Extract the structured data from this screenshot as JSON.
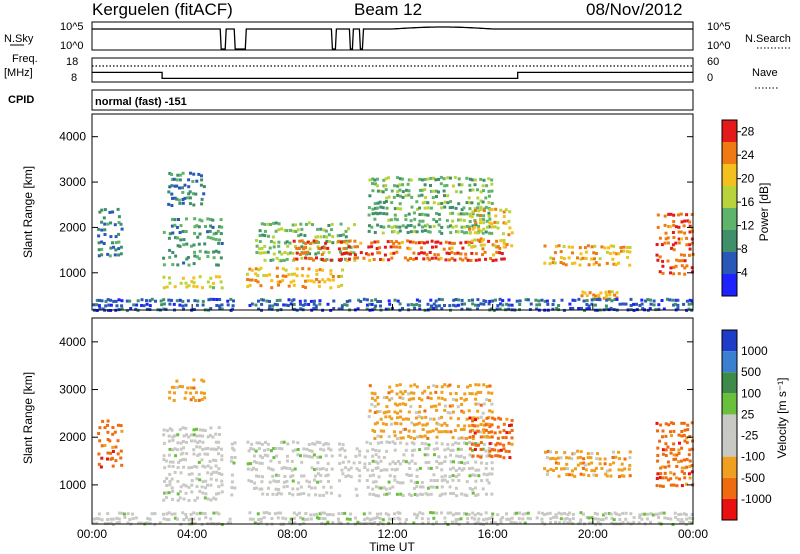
{
  "header": {
    "station": "Kerguelen (fitACF)",
    "beam": "Beam 12",
    "date": "08/Nov/2012"
  },
  "top_strips": {
    "left_labels": {
      "nsky": "N.Sky",
      "freq": "Freq.",
      "freq_unit": "[MHz]",
      "cpid": "CPID"
    },
    "right_labels": {
      "nsearch": "N.Search",
      "nave": "Nave"
    },
    "nsky_ticks": [
      "10^5",
      "10^0"
    ],
    "nsearch_ticks": [
      "10^5",
      "10^0"
    ],
    "freq_ticks": [
      "18",
      "8"
    ],
    "nave_ticks": [
      "60",
      "0"
    ],
    "cpid_text": "normal (fast) -151"
  },
  "colors": {
    "power_scale": [
      "#1e22ff",
      "#2a58b8",
      "#3f8f6b",
      "#5fb36a",
      "#b9d43a",
      "#f4c01d",
      "#f07a12",
      "#e41a1a"
    ],
    "velocity_scale": [
      "#1e3cc8",
      "#3a7fd0",
      "#3d8a4a",
      "#6ac03a",
      "#c8c8c4",
      "#c8c8c4",
      "#f0a020",
      "#f06a10",
      "#e81010"
    ]
  },
  "chart_data": [
    {
      "type": "heatmap",
      "title": "",
      "xlabel": "Time UT",
      "ylabel": "Slant Range [km]",
      "xlim": [
        0,
        24
      ],
      "ylim": [
        180,
        4500
      ],
      "x_ticks": [
        "00:00",
        "04:00",
        "08:00",
        "12:00",
        "16:00",
        "20:00",
        "00:00"
      ],
      "y_ticks": [
        "1000",
        "2000",
        "3000",
        "4000"
      ],
      "colorbar": {
        "label": "Power [dB]",
        "ticks": [
          "4",
          "8",
          "12",
          "16",
          "20",
          "24",
          "28"
        ],
        "range": [
          0,
          30
        ]
      },
      "features": [
        {
          "time": [
            0.2,
            1.2
          ],
          "range": [
            1400,
            2500
          ],
          "value": 8
        },
        {
          "time": [
            2.8,
            5.2
          ],
          "range": [
            700,
            1000
          ],
          "value": 18
        },
        {
          "time": [
            2.8,
            5.2
          ],
          "range": [
            1200,
            2300
          ],
          "value": 11
        },
        {
          "time": [
            3.0,
            4.5
          ],
          "range": [
            2500,
            3300
          ],
          "value": 9
        },
        {
          "time": [
            6.0,
            10.0
          ],
          "range": [
            700,
            1200
          ],
          "value": 22
        },
        {
          "time": [
            6.5,
            10.5
          ],
          "range": [
            1300,
            2200
          ],
          "value": 14
        },
        {
          "time": [
            8.0,
            16.5
          ],
          "range": [
            1300,
            1800
          ],
          "value": 26
        },
        {
          "time": [
            11.0,
            16.0
          ],
          "range": [
            1900,
            3200
          ],
          "value": 13
        },
        {
          "time": [
            15.0,
            16.8
          ],
          "range": [
            1600,
            2500
          ],
          "value": 20
        },
        {
          "time": [
            18.0,
            21.5
          ],
          "range": [
            1200,
            1700
          ],
          "value": 22
        },
        {
          "time": [
            19.5,
            21.0
          ],
          "range": [
            450,
            650
          ],
          "value": 22
        },
        {
          "time": [
            22.5,
            24.0
          ],
          "range": [
            1000,
            2400
          ],
          "value": 26
        },
        {
          "time": [
            0.0,
            24.0
          ],
          "range": [
            200,
            500
          ],
          "value": 6
        }
      ]
    },
    {
      "type": "heatmap",
      "title": "",
      "xlabel": "Time UT",
      "ylabel": "Slant Range [km]",
      "xlim": [
        0,
        24
      ],
      "ylim": [
        180,
        4500
      ],
      "x_ticks": [
        "00:00",
        "04:00",
        "08:00",
        "12:00",
        "16:00",
        "20:00",
        "00:00"
      ],
      "y_ticks": [
        "1000",
        "2000",
        "3000",
        "4000"
      ],
      "colorbar": {
        "label": "Velocity [m s⁻¹]",
        "ticks": [
          "1000",
          "500",
          "100",
          "25",
          "-25",
          "-100",
          "-500",
          "-1000"
        ]
      },
      "features": [
        {
          "time": [
            0.2,
            1.2
          ],
          "range": [
            1400,
            2500
          ],
          "value": -500
        },
        {
          "time": [
            2.8,
            5.2
          ],
          "range": [
            700,
            2300
          ],
          "value": 0
        },
        {
          "time": [
            3.0,
            4.5
          ],
          "range": [
            2800,
            3300
          ],
          "value": -100
        },
        {
          "time": [
            5.5,
            16.0
          ],
          "range": [
            800,
            2000
          ],
          "value": 0
        },
        {
          "time": [
            11.0,
            16.0
          ],
          "range": [
            2000,
            3200
          ],
          "value": -100
        },
        {
          "time": [
            15.0,
            16.8
          ],
          "range": [
            1600,
            2500
          ],
          "value": -500
        },
        {
          "time": [
            18.0,
            21.5
          ],
          "range": [
            1200,
            1800
          ],
          "value": -100
        },
        {
          "time": [
            22.5,
            24.0
          ],
          "range": [
            1000,
            2400
          ],
          "value": -500
        },
        {
          "time": [
            0.0,
            24.0
          ],
          "range": [
            200,
            500
          ],
          "value": 0
        }
      ]
    }
  ],
  "time_series": {
    "nsky_level": 0.75,
    "freq_segments": [
      {
        "t": [
          0.0,
          2.8
        ],
        "mhz": 12
      },
      {
        "t": [
          2.8,
          17.0
        ],
        "mhz": 9.5
      },
      {
        "t": [
          17.0,
          24.0
        ],
        "mhz": 12
      }
    ],
    "data_gaps": [
      [
        5.15,
        5.35
      ],
      [
        5.7,
        6.15
      ],
      [
        9.6,
        9.75
      ],
      [
        10.3,
        10.4
      ],
      [
        10.7,
        10.8
      ]
    ]
  }
}
